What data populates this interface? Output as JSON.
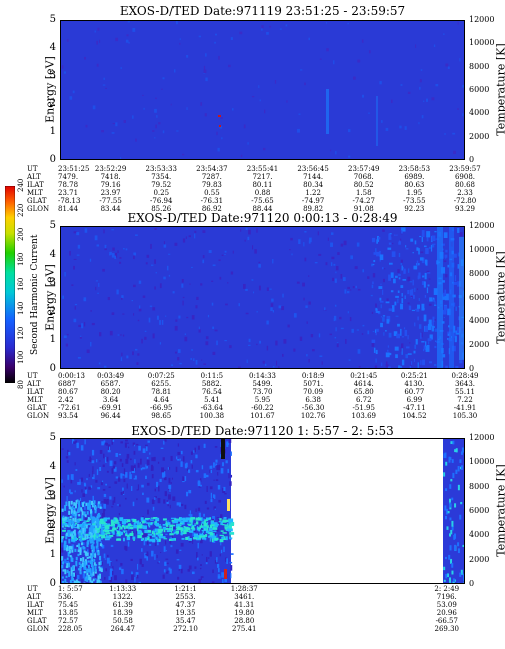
{
  "colorbar": {
    "label": "Second Harmonic Current",
    "ticks": [
      "80",
      "100",
      "120",
      "140",
      "160",
      "180",
      "200",
      "220",
      "240"
    ]
  },
  "chart_data": [
    {
      "type": "heatmap",
      "title": "EXOS-D/TED   Date:971119  23:51:25 - 23:59:57",
      "ylabel": "Energy [eV]",
      "y2label": "Temperature [K]",
      "ylim": [
        0,
        5
      ],
      "yticks": [
        "0",
        "1",
        "2",
        "3",
        "4",
        "5"
      ],
      "y2lim": [
        0,
        12000
      ],
      "y2ticks": [
        "0",
        "2000",
        "4000",
        "6000",
        "8000",
        "10000",
        "12000"
      ],
      "row_labels": [
        "UT",
        "ALT",
        "ILAT",
        "MLT",
        "GLAT",
        "GLON"
      ],
      "columns": [
        [
          "23:51:25",
          "7479.",
          "78.78",
          "23.71",
          "-78.13",
          "81.44"
        ],
        [
          "23:52:29",
          "7418.",
          "79.16",
          "23.97",
          "-77.55",
          "83.44"
        ],
        [
          "23:53:33",
          "7354.",
          "79.52",
          "0.25",
          "-76.94",
          "85.26"
        ],
        [
          "23:54:37",
          "7287.",
          "79.83",
          "0.55",
          "-76.31",
          "86.92"
        ],
        [
          "23:55:41",
          "7217.",
          "80.11",
          "0.88",
          "-75.65",
          "88.44"
        ],
        [
          "23:56:45",
          "7144.",
          "80.34",
          "1.22",
          "-74.97",
          "89.82"
        ],
        [
          "23:57:49",
          "7068.",
          "80.52",
          "1.58",
          "-74.27",
          "91.08"
        ],
        [
          "23:58:53",
          "6989.",
          "80.63",
          "1.95",
          "-73.55",
          "92.23"
        ],
        [
          "23:59:57",
          "6908.",
          "80.68",
          "2.33",
          "-72.80",
          "93.29"
        ]
      ]
    },
    {
      "type": "heatmap",
      "title": "EXOS-D/TED   Date:971120  0:00:13 - 0:28:49",
      "ylabel": "Energy [eV]",
      "y2label": "Temperature [K]",
      "ylim": [
        0,
        5
      ],
      "yticks": [
        "0",
        "1",
        "2",
        "3",
        "4",
        "5"
      ],
      "y2lim": [
        0,
        12000
      ],
      "y2ticks": [
        "0",
        "2000",
        "4000",
        "6000",
        "8000",
        "10000",
        "12000"
      ],
      "row_labels": [
        "UT",
        "ALT",
        "ILAT",
        "MLT",
        "GLAT",
        "GLON"
      ],
      "columns": [
        [
          "0:00:13",
          "6887",
          "80.67",
          "2.42",
          "-72.61",
          "93.54"
        ],
        [
          "0:03:49",
          "6587.",
          "80.20",
          "3.64",
          "-69.91",
          "96.44"
        ],
        [
          "0:07:25",
          "6255.",
          "78.81",
          "4.64",
          "-66.95",
          "98.65"
        ],
        [
          "0:11:5",
          "5882.",
          "76.54",
          "5.41",
          "-63.64",
          "100.38"
        ],
        [
          "0:14:33",
          "5499.",
          "73.70",
          "5.95",
          "-60.22",
          "101.67"
        ],
        [
          "0:18:9",
          "5071.",
          "70.09",
          "6.38",
          "-56.30",
          "102.76"
        ],
        [
          "0:21:45",
          "4614.",
          "65.80",
          "6.72",
          "-51.95",
          "103.69"
        ],
        [
          "0:25:21",
          "4130.",
          "60.77",
          "6.99",
          "-47.11",
          "104.52"
        ],
        [
          "0:28:49",
          "3643.",
          "55.11",
          "7.22",
          "-41.91",
          "105.30"
        ]
      ]
    },
    {
      "type": "heatmap",
      "title": "EXOS-D/TED   Date:971120  1: 5:57 - 2: 5:53",
      "ylabel": "Energy [eV]",
      "y2label": "Temperature [K]",
      "ylim": [
        0,
        5
      ],
      "yticks": [
        "0",
        "1",
        "2",
        "3",
        "4",
        "5"
      ],
      "y2lim": [
        0,
        12000
      ],
      "y2ticks": [
        "0",
        "2000",
        "4000",
        "6000",
        "8000",
        "10000",
        "12000"
      ],
      "row_labels": [
        "UT",
        "ALT",
        "ILAT",
        "MLT",
        "GLAT",
        "GLON"
      ],
      "columns": [
        [
          "1: 5:57",
          "536.",
          "75.45",
          "13.85",
          "72.57",
          "228.05"
        ],
        [
          "1:13:33",
          "1322.",
          "61.39",
          "18.39",
          "50.58",
          "264.47"
        ],
        [
          "1:21:1",
          "2553.",
          "47.37",
          "19.35",
          "35.47",
          "272.10"
        ],
        [
          "1:28:37",
          "3461.",
          "41.31",
          "19.80",
          "28.80",
          "275.41"
        ],
        [
          "2: 2:49",
          "7196.",
          "53.09",
          "20.96",
          "-66.57",
          "269.30"
        ]
      ]
    }
  ]
}
